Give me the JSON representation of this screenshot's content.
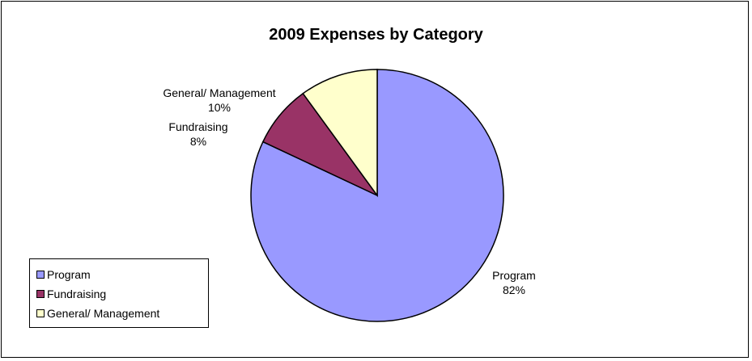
{
  "chart_data": {
    "type": "pie",
    "title": "2009 Expenses by Category",
    "categories": [
      "Program",
      "Fundraising",
      "General/ Management"
    ],
    "values": [
      82,
      8,
      10
    ],
    "data_labels": [
      "82%",
      "8%",
      "10%"
    ],
    "colors": [
      "#9999ff",
      "#993366",
      "#ffffcc"
    ],
    "legend": "left-bottom"
  },
  "labels": {
    "program": {
      "name": "Program",
      "pct": "82%"
    },
    "fundraising": {
      "name": "Fundraising",
      "pct": "8%"
    },
    "general": {
      "name": "General/ Management",
      "pct": "10%"
    }
  },
  "legend": {
    "items": [
      {
        "label": "Program",
        "color": "#9999ff"
      },
      {
        "label": "Fundraising",
        "color": "#993366"
      },
      {
        "label": "General/ Management",
        "color": "#ffffcc"
      }
    ]
  }
}
